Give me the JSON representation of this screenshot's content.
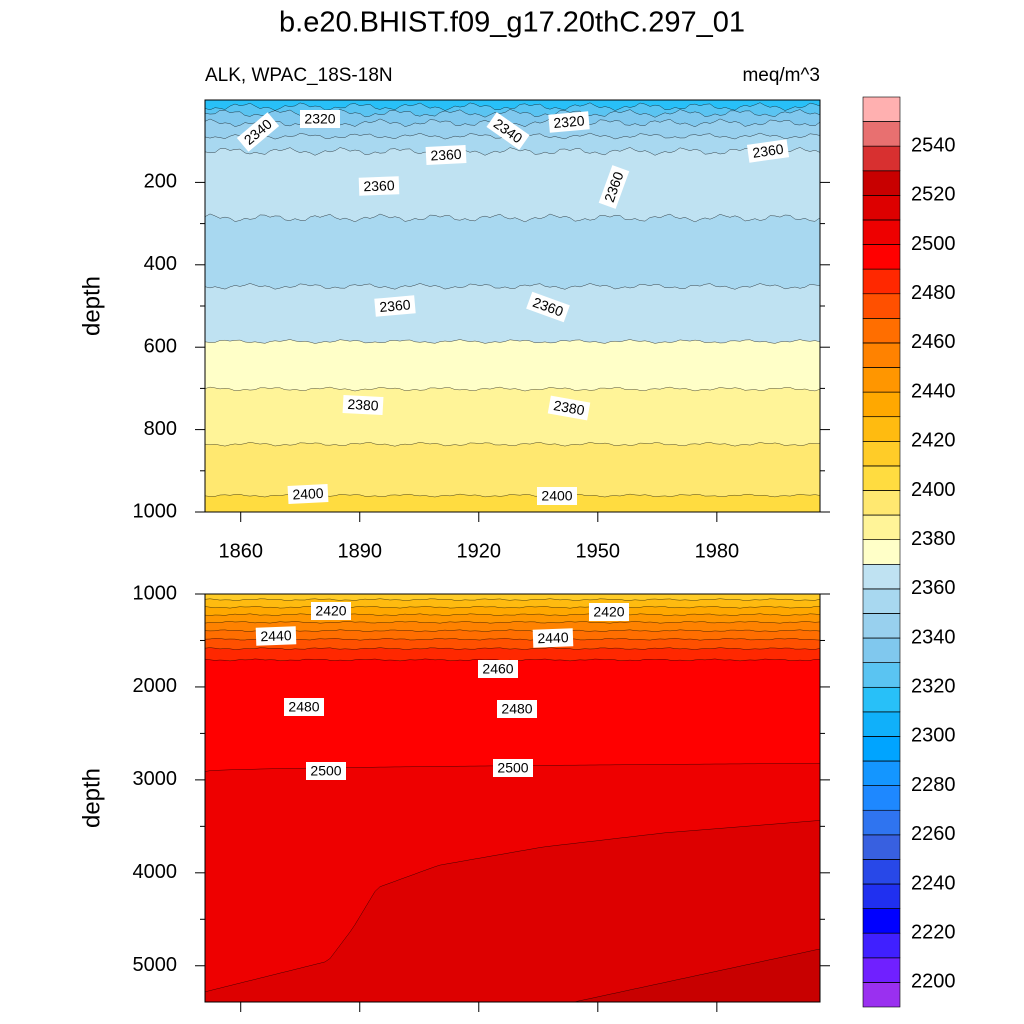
{
  "chart_data": [
    {
      "type": "contour",
      "title": "b.e20.BHIST.f09_g17.20thC.297_01",
      "subtitle_left": "ALK, WPAC_18S-18N",
      "subtitle_right": "meq/m^3",
      "ylabel": "depth",
      "ylim": [
        0,
        1000
      ],
      "yticks": [
        200,
        400,
        600,
        800,
        1000
      ],
      "xlim": [
        1851,
        2006
      ],
      "xticks": [
        1860,
        1890,
        1920,
        1950,
        1980
      ],
      "contour_labels": [
        2340,
        2320,
        2340,
        2320,
        2360,
        2360,
        2360,
        2360,
        2360,
        2360,
        2380,
        2380,
        2400,
        2400
      ]
    },
    {
      "type": "contour",
      "ylabel": "depth",
      "ylim": [
        1000,
        5390
      ],
      "yticks": [
        1000,
        2000,
        3000,
        4000,
        5000
      ],
      "xlim": [
        1851,
        2006
      ],
      "xticks": [
        1860,
        1890,
        1920,
        1950,
        1980
      ],
      "contour_labels": [
        2420,
        2420,
        2440,
        2440,
        2460,
        2480,
        2480,
        2500,
        2500
      ]
    }
  ],
  "colorbar": {
    "levels": [
      2200,
      2210,
      2220,
      2230,
      2240,
      2250,
      2260,
      2270,
      2280,
      2290,
      2300,
      2310,
      2320,
      2330,
      2340,
      2350,
      2360,
      2370,
      2380,
      2390,
      2400,
      2410,
      2420,
      2430,
      2440,
      2450,
      2460,
      2470,
      2480,
      2490,
      2500,
      2510,
      2520,
      2530,
      2540,
      2550
    ],
    "ticks": [
      2200,
      2220,
      2240,
      2260,
      2280,
      2300,
      2320,
      2340,
      2360,
      2380,
      2400,
      2420,
      2440,
      2460,
      2480,
      2500,
      2520,
      2540
    ],
    "colors": [
      "#9a30f0",
      "#7020ff",
      "#4020ff",
      "#0000ff",
      "#2030f0",
      "#2848e8",
      "#3860e0",
      "#2f74f0",
      "#1e88ff",
      "#1496ff",
      "#00a4ff",
      "#10b0fa",
      "#28c0f8",
      "#5ac4f2",
      "#80c8ee",
      "#98d0ee",
      "#a8d8f0",
      "#bfe2f2",
      "#ffffc8",
      "#fff498",
      "#ffe870",
      "#ffdc40",
      "#ffcc28",
      "#ffbb10",
      "#ffa800",
      "#ff9600",
      "#ff8200",
      "#ff6e00",
      "#ff5000",
      "#ff2800",
      "#ff0000",
      "#ee0000",
      "#dd0000",
      "#c80000",
      "#d83030",
      "#e87070",
      "#ffb0b0"
    ]
  }
}
